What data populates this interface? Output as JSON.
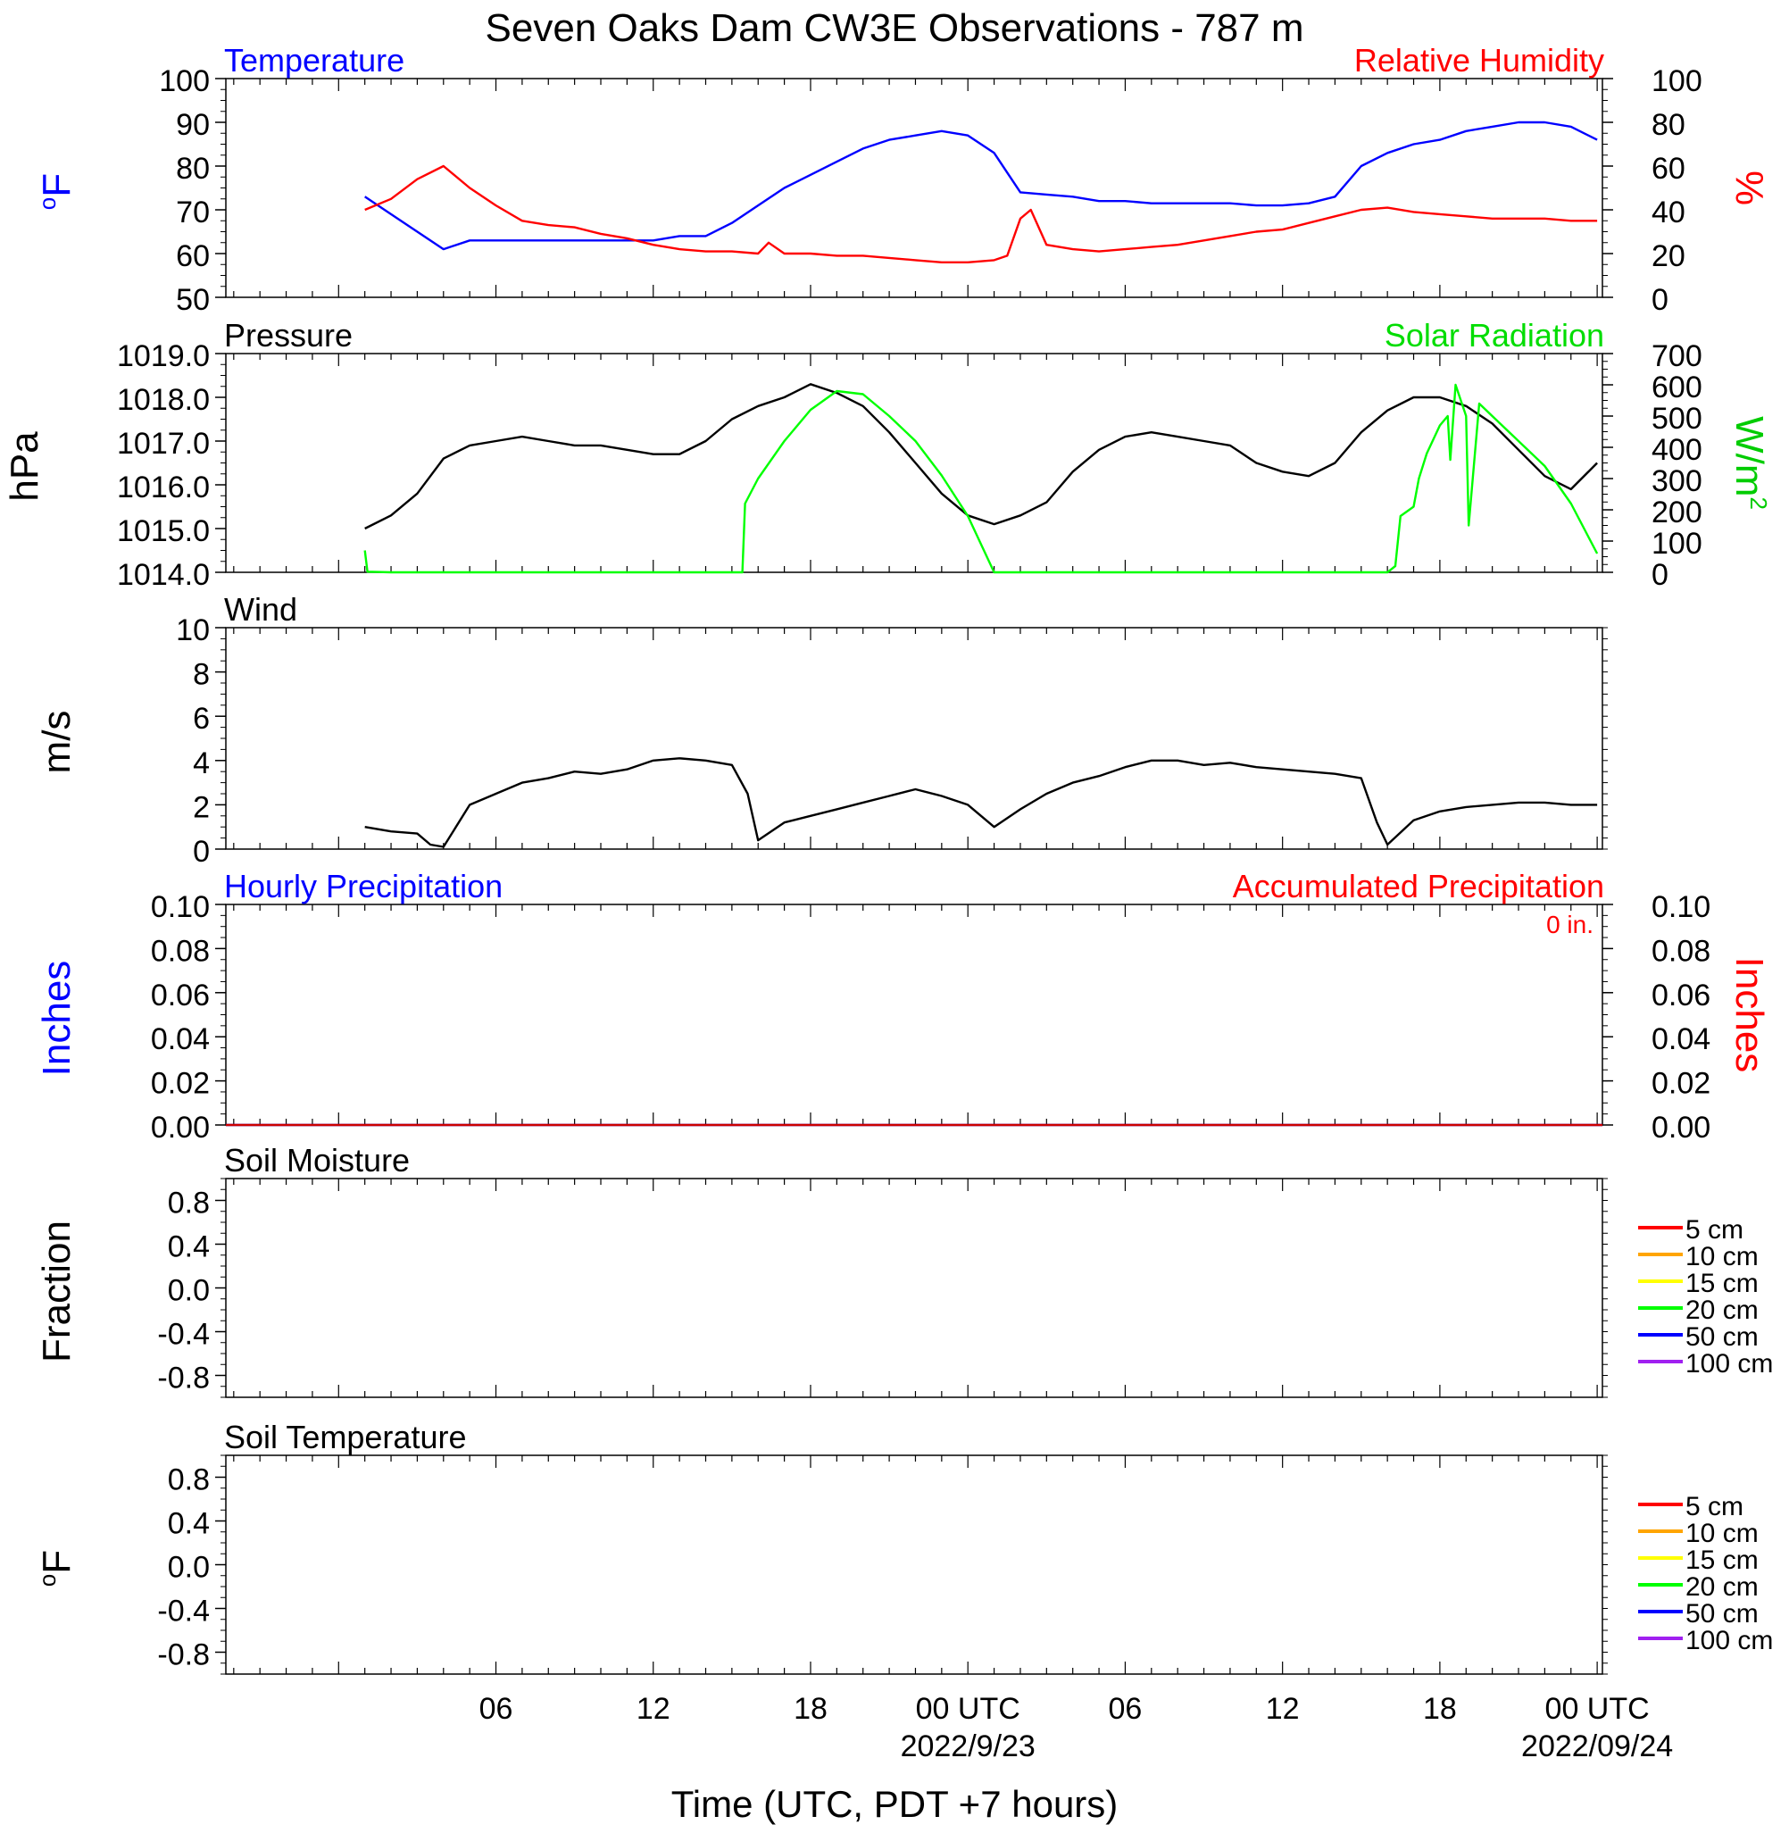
{
  "title": "Seven Oaks Dam CW3E Observations - 787 m",
  "xaxis": {
    "range_hours": [
      -4.3,
      48.2
    ],
    "ticks": [
      {
        "h": 6,
        "label": "06"
      },
      {
        "h": 12,
        "label": "12"
      },
      {
        "h": 18,
        "label": "18"
      },
      {
        "h": 24,
        "label": "00 UTC"
      },
      {
        "h": 30,
        "label": "06"
      },
      {
        "h": 36,
        "label": "12"
      },
      {
        "h": 42,
        "label": "18"
      },
      {
        "h": 48,
        "label": "00 UTC"
      }
    ],
    "date_labels": [
      {
        "h": 24,
        "label": "2022/9/23"
      },
      {
        "h": 48,
        "label": "2022/09/24"
      }
    ],
    "xlabel": "Time (UTC, PDT +7 hours)"
  },
  "chart_data": [
    {
      "type": "line",
      "panel": "temperature-humidity",
      "title_left": "Temperature",
      "title_right": "Relative Humidity",
      "ylabel_left": "oF",
      "ylabel_right": "%",
      "ylim_left": [
        50,
        100
      ],
      "ylim_right": [
        0,
        100
      ],
      "yticks_left": [
        "50",
        "60",
        "70",
        "80",
        "90",
        "100"
      ],
      "yticks_right": [
        "0",
        "20",
        "40",
        "60",
        "80",
        "100"
      ],
      "series": [
        {
          "name": "Temperature",
          "axis": "left",
          "color": "#0000ff",
          "x": [
            1,
            2,
            3,
            4,
            5,
            6,
            7,
            8,
            9,
            10,
            11,
            12,
            13,
            14,
            15,
            16,
            17,
            18,
            19,
            20,
            21,
            22,
            23,
            24,
            25,
            26,
            27,
            28,
            29,
            30,
            31,
            32,
            33,
            34,
            35,
            36,
            37,
            38,
            39,
            40,
            41,
            42,
            43,
            44,
            45,
            46,
            47,
            48
          ],
          "y": [
            73,
            69,
            65,
            61,
            63,
            63,
            63,
            63,
            63,
            63,
            63,
            63,
            64,
            64,
            67,
            71,
            75,
            78,
            81,
            84,
            86,
            87,
            88,
            87,
            83,
            74,
            73.5,
            73,
            72,
            72,
            71.5,
            71.5,
            71.5,
            71.5,
            71,
            71,
            71.5,
            73,
            80,
            83,
            85,
            86,
            88,
            89,
            90,
            90,
            89,
            86
          ]
        },
        {
          "name": "Relative Humidity",
          "axis": "right",
          "color": "#ff0000",
          "x": [
            1,
            2,
            3,
            4,
            5,
            6,
            7,
            8,
            9,
            10,
            11,
            12,
            13,
            14,
            15,
            16,
            16.4,
            17,
            18,
            19,
            20,
            21,
            22,
            23,
            24,
            25,
            25.5,
            26,
            26.4,
            27,
            28,
            29,
            30,
            31,
            32,
            33,
            34,
            35,
            36,
            37,
            38,
            39,
            40,
            41,
            42,
            43,
            44,
            45,
            46,
            47,
            48
          ],
          "y": [
            40,
            45,
            54,
            60,
            50,
            42,
            35,
            33,
            32,
            29,
            27,
            24,
            22,
            21,
            21,
            20,
            25,
            20,
            20,
            19,
            19,
            18,
            17,
            16,
            16,
            17,
            19,
            36,
            40,
            24,
            22,
            21,
            22,
            23,
            24,
            26,
            28,
            30,
            31,
            34,
            37,
            40,
            41,
            39,
            38,
            37,
            36,
            36,
            36,
            35,
            35
          ]
        }
      ]
    },
    {
      "type": "line",
      "panel": "pressure-solar",
      "title_left": "Pressure",
      "title_right": "Solar Radiation",
      "ylabel_left": "hPa",
      "ylabel_right": "W/m2",
      "ylim_left": [
        1014,
        1019
      ],
      "ylim_right": [
        0,
        700
      ],
      "yticks_left": [
        "1014.0",
        "1015.0",
        "1016.0",
        "1017.0",
        "1018.0",
        "1019.0"
      ],
      "yticks_right": [
        "0",
        "100",
        "200",
        "300",
        "400",
        "500",
        "600",
        "700"
      ],
      "series": [
        {
          "name": "Pressure",
          "axis": "left",
          "color": "#000000",
          "x": [
            1,
            2,
            3,
            4,
            5,
            6,
            7,
            8,
            9,
            10,
            11,
            12,
            13,
            14,
            15,
            16,
            17,
            18,
            19,
            20,
            21,
            22,
            23,
            24,
            25,
            26,
            27,
            28,
            29,
            30,
            31,
            32,
            33,
            34,
            35,
            36,
            37,
            38,
            39,
            40,
            41,
            42,
            43,
            44,
            45,
            46,
            47,
            48
          ],
          "y": [
            1015,
            1015.3,
            1015.8,
            1016.6,
            1016.9,
            1017,
            1017.1,
            1017,
            1016.9,
            1016.9,
            1016.8,
            1016.7,
            1016.7,
            1017,
            1017.5,
            1017.8,
            1018,
            1018.3,
            1018.1,
            1017.8,
            1017.2,
            1016.5,
            1015.8,
            1015.3,
            1015.1,
            1015.3,
            1015.6,
            1016.3,
            1016.8,
            1017.1,
            1017.2,
            1017.1,
            1017,
            1016.9,
            1016.5,
            1016.3,
            1016.2,
            1016.5,
            1017.2,
            1017.7,
            1018,
            1018,
            1017.8,
            1017.4,
            1016.8,
            1016.2,
            1015.9,
            1016.5
          ]
        },
        {
          "name": "Solar Radiation",
          "axis": "right",
          "color": "#00ff00",
          "x": [
            1,
            1.1,
            2,
            14,
            15.4,
            15.5,
            16,
            17,
            18,
            19,
            20,
            21,
            22,
            23,
            24,
            25,
            26,
            26.1,
            27,
            40,
            40.3,
            40.5,
            41,
            41.2,
            41.5,
            42,
            42.3,
            42.4,
            42.6,
            43,
            43.1,
            43.5,
            44,
            45,
            46,
            47,
            48
          ],
          "y": [
            70,
            2,
            0,
            0,
            0,
            220,
            300,
            420,
            520,
            580,
            570,
            500,
            420,
            310,
            180,
            0,
            0,
            0,
            0,
            0,
            20,
            180,
            210,
            300,
            380,
            470,
            500,
            360,
            600,
            500,
            150,
            540,
            500,
            420,
            340,
            220,
            60
          ]
        }
      ]
    },
    {
      "type": "line",
      "panel": "wind",
      "title_left": "Wind",
      "ylabel_left": "m/s",
      "ylim_left": [
        0,
        10
      ],
      "yticks_left": [
        "0",
        "2",
        "4",
        "6",
        "8",
        "10"
      ],
      "series": [
        {
          "name": "Wind",
          "axis": "left",
          "color": "#000000",
          "x": [
            1,
            2,
            3,
            3.5,
            4,
            5,
            6,
            7,
            8,
            9,
            10,
            11,
            12,
            13,
            14,
            15,
            15.6,
            16,
            17,
            18,
            19,
            20,
            21,
            22,
            23,
            24,
            25,
            26,
            27,
            28,
            29,
            30,
            31,
            32,
            33,
            34,
            35,
            36,
            37,
            38,
            39,
            39.6,
            40,
            41,
            42,
            43,
            44,
            45,
            46,
            47,
            48
          ],
          "y": [
            1,
            0.8,
            0.7,
            0.2,
            0.1,
            2,
            2.5,
            3,
            3.2,
            3.5,
            3.4,
            3.6,
            4,
            4.1,
            4,
            3.8,
            2.5,
            0.4,
            1.2,
            1.5,
            1.8,
            2.1,
            2.4,
            2.7,
            2.4,
            2,
            1,
            1.8,
            2.5,
            3,
            3.3,
            3.7,
            4,
            4,
            3.8,
            3.9,
            3.7,
            3.6,
            3.5,
            3.4,
            3.2,
            1.2,
            0.2,
            1.3,
            1.7,
            1.9,
            2,
            2.1,
            2.1,
            2,
            2
          ]
        }
      ]
    },
    {
      "type": "line",
      "panel": "precipitation",
      "title_left": "Hourly Precipitation",
      "title_right": "Accumulated Precipitation",
      "annotation": "0 in.",
      "ylabel_left": "Inches",
      "ylabel_right": "Inches",
      "ylim_left": [
        0,
        0.1
      ],
      "ylim_right": [
        0,
        0.1
      ],
      "yticks_left": [
        "0.00",
        "0.02",
        "0.04",
        "0.06",
        "0.08",
        "0.10"
      ],
      "yticks_right": [
        "0.00",
        "0.02",
        "0.04",
        "0.06",
        "0.08",
        "0.10"
      ],
      "series": [
        {
          "name": "Hourly Precipitation",
          "axis": "left",
          "color": "#0000ff",
          "x": [
            -4.3,
            48.2
          ],
          "y": [
            0,
            0
          ]
        },
        {
          "name": "Accumulated Precipitation",
          "axis": "right",
          "color": "#cc0000",
          "x": [
            -4.3,
            48.2
          ],
          "y": [
            0,
            0
          ]
        }
      ]
    },
    {
      "type": "line",
      "panel": "soil-moisture",
      "title_left": "Soil Moisture",
      "ylabel_left": "Fraction",
      "ylim_left": [
        -1,
        1
      ],
      "yticks_left": [
        "-0.8",
        "-0.4",
        "0.0",
        "0.4",
        "0.8"
      ],
      "yticks_left_values": [
        -0.8,
        -0.4,
        0,
        0.4,
        0.8
      ],
      "legend": [
        {
          "label": "5 cm",
          "color": "#ff0000"
        },
        {
          "label": "10 cm",
          "color": "#ffa500"
        },
        {
          "label": "15 cm",
          "color": "#ffff00"
        },
        {
          "label": "20 cm",
          "color": "#00ff00"
        },
        {
          "label": "50 cm",
          "color": "#0000ff"
        },
        {
          "label": "100 cm",
          "color": "#a020f0"
        }
      ],
      "series": []
    },
    {
      "type": "line",
      "panel": "soil-temperature",
      "title_left": "Soil Temperature",
      "ylabel_left": "oF",
      "ylim_left": [
        -1,
        1
      ],
      "yticks_left": [
        "-0.8",
        "-0.4",
        "0.0",
        "0.4",
        "0.8"
      ],
      "yticks_left_values": [
        -0.8,
        -0.4,
        0,
        0.4,
        0.8
      ],
      "legend": [
        {
          "label": "5 cm",
          "color": "#ff0000"
        },
        {
          "label": "10 cm",
          "color": "#ffa500"
        },
        {
          "label": "15 cm",
          "color": "#ffff00"
        },
        {
          "label": "20 cm",
          "color": "#00ff00"
        },
        {
          "label": "50 cm",
          "color": "#0000ff"
        },
        {
          "label": "100 cm",
          "color": "#a020f0"
        }
      ],
      "series": []
    }
  ]
}
